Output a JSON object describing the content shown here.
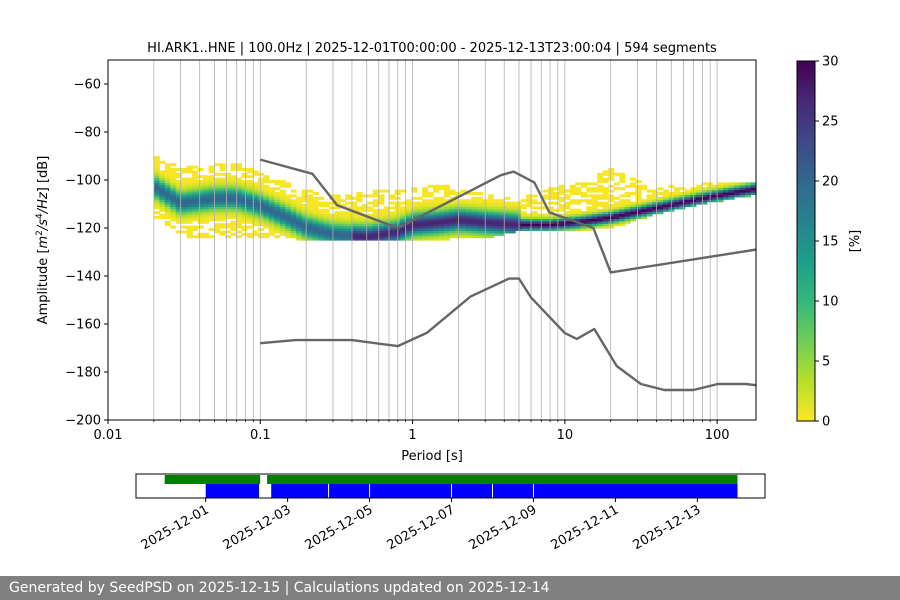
{
  "chart_data": [
    {
      "type": "heatmap",
      "title": "HI.ARK1..HNE | 100.0Hz | 2025-12-01T00:00:00 - 2025-12-13T23:00:04 | 594 segments",
      "xlabel": "Period [s]",
      "ylabel_parts": [
        "Amplitude [",
        "m",
        "2",
        "/s",
        "4",
        "/Hz",
        "] [dB]"
      ],
      "x_scale": "log",
      "xlim": [
        0.01,
        180
      ],
      "ylim": [
        -200,
        -50
      ],
      "x_ticks": [
        0.01,
        0.1,
        1,
        10,
        100
      ],
      "x_tick_labels": [
        "0.01",
        "0.1",
        "1",
        "10",
        "100"
      ],
      "y_ticks": [
        -200,
        -180,
        -160,
        -140,
        -120,
        -100,
        -80,
        -60
      ],
      "y_tick_labels": [
        "−200",
        "−180",
        "−160",
        "−140",
        "−120",
        "−100",
        "−80",
        "−60"
      ],
      "grid_x_major": [
        0.1,
        1,
        10,
        100
      ],
      "grid_x_minor": [
        0.02,
        0.03,
        0.04,
        0.05,
        0.06,
        0.07,
        0.08,
        0.09,
        0.2,
        0.3,
        0.4,
        0.5,
        0.6,
        0.7,
        0.8,
        0.9,
        2,
        3,
        4,
        5,
        6,
        7,
        8,
        9,
        20,
        30,
        40,
        50,
        60,
        70,
        80,
        90
      ],
      "colorbar": {
        "label": "[%]",
        "range": [
          0,
          30
        ],
        "ticks": [
          0,
          5,
          10,
          15,
          20,
          25,
          30
        ],
        "tick_labels": [
          "0",
          "5",
          "10",
          "15",
          "20",
          "25",
          "30"
        ],
        "colormap": [
          "#fde725",
          "#b5de2b",
          "#6ece58",
          "#35b779",
          "#1f9e89",
          "#26828e",
          "#31688e",
          "#3e4989",
          "#482878",
          "#440154"
        ]
      },
      "period_range": [
        0.02,
        180
      ],
      "mode_curve": {
        "x": [
          0.02,
          0.03,
          0.05,
          0.07,
          0.1,
          0.15,
          0.2,
          0.3,
          0.5,
          0.8,
          1.0,
          1.5,
          2.0,
          3.0,
          5.0,
          8.0,
          12.0,
          20.0,
          40.0,
          80.0,
          180.0
        ],
        "y": [
          -103,
          -110,
          -108,
          -108,
          -111,
          -116,
          -120,
          -123,
          -124,
          -122,
          -119,
          -118,
          -117,
          -118,
          -119,
          -119,
          -118,
          -116,
          -112,
          -108,
          -104
        ]
      },
      "spread_band": {
        "x": [
          0.02,
          0.03,
          0.05,
          0.07,
          0.1,
          0.15,
          0.2,
          0.3,
          0.5,
          0.8,
          1.0,
          1.5,
          2.0,
          3.0,
          5.0,
          8.0,
          12.0,
          20.0,
          40.0,
          80.0,
          180.0
        ],
        "upper": [
          -90,
          -96,
          -94,
          -94,
          -98,
          -102,
          -105,
          -107,
          -106,
          -104,
          -104,
          -103,
          -104,
          -107,
          -109,
          -104,
          -102,
          -96,
          -104,
          -102,
          -102
        ],
        "lower": [
          -115,
          -124,
          -124,
          -124,
          -124,
          -124,
          -125,
          -125,
          -125,
          -125,
          -125,
          -125,
          -124,
          -124,
          -121,
          -121,
          -121,
          -120,
          -114,
          -110,
          -106
        ]
      },
      "nhnm": {
        "x": [
          0.1,
          0.22,
          0.32,
          0.8,
          3.8,
          4.6,
          6.3,
          7.9,
          15.4,
          20,
          180
        ],
        "y": [
          -91.5,
          -97.4,
          -110.5,
          -120,
          -98,
          -96.5,
          -101,
          -113.5,
          -120,
          -138.5,
          -129
        ]
      },
      "nlnm": {
        "x": [
          0.1,
          0.17,
          0.4,
          0.8,
          1.24,
          2.4,
          4.3,
          5.0,
          6.0,
          10.0,
          12.0,
          15.6,
          21.9,
          31.6,
          45.0,
          70.0,
          101,
          154,
          180
        ],
        "y": [
          -168,
          -166.7,
          -166.7,
          -169.2,
          -163.7,
          -148.6,
          -141.1,
          -141.1,
          -149,
          -163.8,
          -166.2,
          -162.1,
          -177.5,
          -185,
          -187.5,
          -187.5,
          -185,
          -185,
          -185.5
        ]
      }
    },
    {
      "type": "timeline",
      "x_tick_labels": [
        "2025-12-01",
        "2025-12-03",
        "2025-12-05",
        "2025-12-07",
        "2025-12-09",
        "2025-12-11",
        "2025-12-13"
      ],
      "tick_day_offsets": [
        1,
        3,
        5,
        7,
        9,
        11,
        13
      ],
      "xlim_days": [
        -0.7,
        14.65
      ],
      "data_span_days": [
        [
          0.0,
          2.33
        ],
        [
          2.5,
          13.98
        ]
      ],
      "psd_span_days": [
        [
          1.0,
          2.3
        ],
        [
          2.6,
          13.98
        ]
      ],
      "psd_gap_days": [
        2.42,
        4.0,
        5.0,
        7.0,
        8.0,
        9.0
      ]
    }
  ],
  "footer_text": "Generated by SeedPSD on 2025-12-15 | Calculations updated on 2025-12-14"
}
